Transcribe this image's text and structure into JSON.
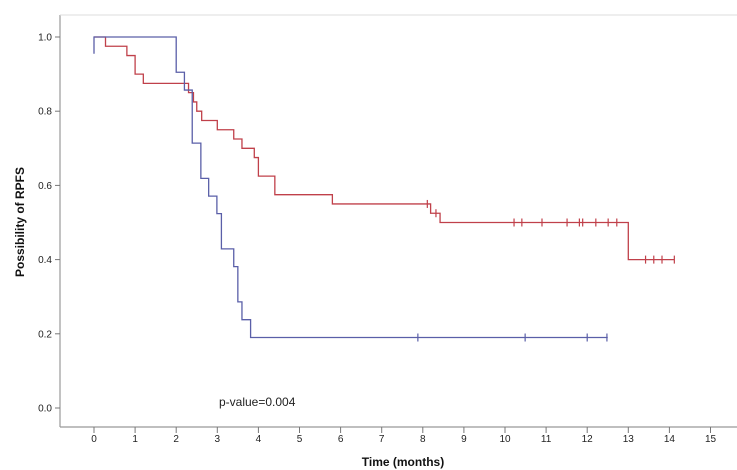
{
  "chart_data": {
    "type": "line",
    "subtype": "kaplan-meier step",
    "title": "",
    "xlabel": "Time (months)",
    "ylabel": "Possibility of RPFS",
    "xlim": [
      -0.8,
      15.7
    ],
    "ylim": [
      0,
      1
    ],
    "xticks": [
      "0",
      "1",
      "2",
      "3",
      "4",
      "5",
      "6",
      "7",
      "8",
      "9",
      "10",
      "11",
      "12",
      "13",
      "14",
      "15"
    ],
    "yticks": [
      "0.0",
      "0.2",
      "0.4",
      "0.6",
      "0.8",
      "1.0"
    ],
    "grid": false,
    "legend": "none",
    "annotation": "p-value=0.004",
    "series": [
      {
        "color": "#c0404a",
        "steps": [
          [
            0,
            1.0
          ],
          [
            0.28,
            0.975
          ],
          [
            0.8,
            0.95
          ],
          [
            1.0,
            0.9
          ],
          [
            1.2,
            0.875
          ],
          [
            2.3,
            0.85
          ],
          [
            2.42,
            0.825
          ],
          [
            2.5,
            0.8
          ],
          [
            2.62,
            0.775
          ],
          [
            3.0,
            0.75
          ],
          [
            3.4,
            0.725
          ],
          [
            3.6,
            0.7
          ],
          [
            3.9,
            0.675
          ],
          [
            4.0,
            0.625
          ],
          [
            4.4,
            0.575
          ],
          [
            5.8,
            0.55
          ],
          [
            8.19,
            0.525
          ],
          [
            8.42,
            0.5
          ],
          [
            13.0,
            0.4
          ]
        ],
        "end": 14.12,
        "censored": [
          8.11,
          8.32,
          10.22,
          10.41,
          10.9,
          11.51,
          11.81,
          11.89,
          12.21,
          12.51,
          12.72,
          13.42,
          13.62,
          13.82,
          14.12
        ]
      },
      {
        "color": "#5a5fa8",
        "start_value": 0.955,
        "steps": [
          [
            0,
            1.0
          ],
          [
            2.0,
            0.905
          ],
          [
            2.2,
            0.857
          ],
          [
            2.39,
            0.714
          ],
          [
            2.6,
            0.619
          ],
          [
            2.79,
            0.571
          ],
          [
            2.99,
            0.524
          ],
          [
            3.1,
            0.429
          ],
          [
            3.4,
            0.381
          ],
          [
            3.5,
            0.286
          ],
          [
            3.6,
            0.238
          ],
          [
            3.81,
            0.19
          ]
        ],
        "end": 12.5,
        "censored": [
          7.88,
          10.49,
          12.0,
          12.48
        ]
      }
    ]
  }
}
